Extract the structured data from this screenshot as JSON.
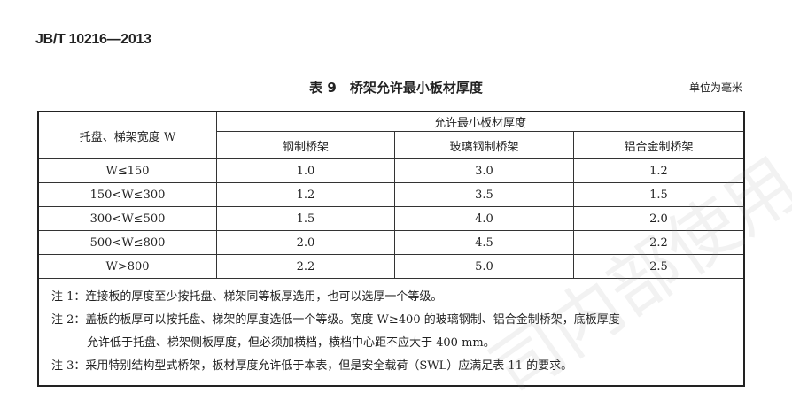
{
  "header": {
    "standard": "JB/T 10216—2013"
  },
  "table": {
    "title": "表 9　桥架允许最小板材厚度",
    "unit": "单位为毫米",
    "row_header": "托盘、梯架宽度 W",
    "group_header": "允许最小板材厚度",
    "columns": [
      "钢制桥架",
      "玻璃钢制桥架",
      "铝合金制桥架"
    ],
    "rows": [
      {
        "width": "W≤150",
        "values": [
          "1.0",
          "3.0",
          "1.2"
        ]
      },
      {
        "width": "150<W≤300",
        "values": [
          "1.2",
          "3.5",
          "1.5"
        ]
      },
      {
        "width": "300<W≤500",
        "values": [
          "1.5",
          "4.0",
          "2.0"
        ]
      },
      {
        "width": "500<W≤800",
        "values": [
          "2.0",
          "4.5",
          "2.2"
        ]
      },
      {
        "width": "W>800",
        "values": [
          "2.2",
          "5.0",
          "2.5"
        ]
      }
    ],
    "notes": [
      "注 1：连接板的厚度至少按托盘、梯架同等板厚选用，也可以选厚一个等级。",
      "注 2：盖板的板厚可以按托盘、梯架的厚度选低一个等级。宽度 W≥400 的玻璃钢制、铝合金制桥架，底板厚度",
      "允许低于托盘、梯架侧板厚度，但必须加横档，横档中心距不应大于 400 mm。",
      "注 3：采用特别结构型式桥架，板材厚度允许低于本表，但是安全载荷（SWL）应满足表 11 的要求。"
    ]
  },
  "watermark": "司内部使用"
}
